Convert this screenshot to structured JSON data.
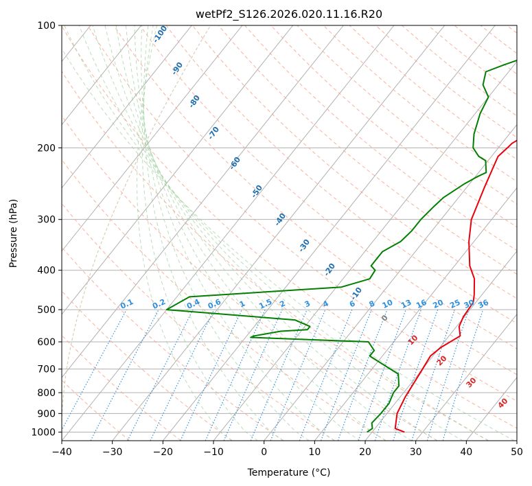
{
  "chart_data": {
    "type": "skew-t",
    "title": "wetPf2_S126.2026.020.11.16.R20",
    "xlabel": "Temperature (°C)",
    "ylabel": "Pressure (hPa)",
    "xlim": [
      -40,
      50
    ],
    "ylim": [
      1050,
      100
    ],
    "y_scale": "log",
    "x_ticks": [
      "−40",
      "−30",
      "−20",
      "−10",
      "0",
      "10",
      "20",
      "30",
      "40",
      "50"
    ],
    "y_ticks": [
      "100",
      "200",
      "300",
      "400",
      "500",
      "600",
      "700",
      "800",
      "900",
      "1000"
    ],
    "grid": true,
    "series": [
      {
        "role": "temperature",
        "color": "#e8000b",
        "points": [
          {
            "x": 26.4,
            "p": 1000
          },
          {
            "x": 24.0,
            "p": 980
          },
          {
            "x": 22.0,
            "p": 900
          },
          {
            "x": 21.0,
            "p": 820
          },
          {
            "x": 20.0,
            "p": 700
          },
          {
            "x": 19.5,
            "p": 650
          },
          {
            "x": 20.2,
            "p": 620
          },
          {
            "x": 22.2,
            "p": 580
          },
          {
            "x": 20.5,
            "p": 550
          },
          {
            "x": 19.8,
            "p": 520
          },
          {
            "x": 19.5,
            "p": 480
          },
          {
            "x": 18.5,
            "p": 460
          },
          {
            "x": 16.0,
            "p": 420
          },
          {
            "x": 13.0,
            "p": 390
          },
          {
            "x": 9.0,
            "p": 340
          },
          {
            "x": 6.0,
            "p": 300
          },
          {
            "x": 3.5,
            "p": 250
          },
          {
            "x": 1.3,
            "p": 210
          },
          {
            "x": 1.8,
            "p": 200
          },
          {
            "x": 2.0,
            "p": 195
          },
          {
            "x": 4.5,
            "p": 180
          },
          {
            "x": 6.5,
            "p": 170
          },
          {
            "x": 7.5,
            "p": 160
          },
          {
            "x": 8.5,
            "p": 140
          },
          {
            "x": 7.0,
            "p": 120
          },
          {
            "x": 6.0,
            "p": 110
          },
          {
            "x": 6.0,
            "p": 100
          }
        ]
      },
      {
        "role": "dewpoint",
        "color": "#007f00",
        "points": [
          {
            "x": 19.0,
            "p": 1000
          },
          {
            "x": 19.5,
            "p": 980
          },
          {
            "x": 18.5,
            "p": 950
          },
          {
            "x": 18.8,
            "p": 900
          },
          {
            "x": 18.8,
            "p": 850
          },
          {
            "x": 18.0,
            "p": 800
          },
          {
            "x": 18.0,
            "p": 770
          },
          {
            "x": 16.0,
            "p": 720
          },
          {
            "x": 10.0,
            "p": 670
          },
          {
            "x": 7.5,
            "p": 650
          },
          {
            "x": 7.5,
            "p": 630
          },
          {
            "x": 5.0,
            "p": 600
          },
          {
            "x": -19.0,
            "p": 585
          },
          {
            "x": -18.5,
            "p": 580
          },
          {
            "x": -14.0,
            "p": 565
          },
          {
            "x": -9.0,
            "p": 560
          },
          {
            "x": -9.0,
            "p": 550
          },
          {
            "x": -13.0,
            "p": 530
          },
          {
            "x": -40.0,
            "p": 500
          },
          {
            "x": -37.5,
            "p": 465
          },
          {
            "x": -9.0,
            "p": 440
          },
          {
            "x": -4.7,
            "p": 420
          },
          {
            "x": -5.0,
            "p": 400
          },
          {
            "x": -6.5,
            "p": 390
          },
          {
            "x": -6.5,
            "p": 360
          },
          {
            "x": -4.5,
            "p": 340
          },
          {
            "x": -4.0,
            "p": 320
          },
          {
            "x": -4.0,
            "p": 300
          },
          {
            "x": -3.5,
            "p": 280
          },
          {
            "x": -3.0,
            "p": 265
          },
          {
            "x": -1.0,
            "p": 245
          },
          {
            "x": 0.5,
            "p": 235
          },
          {
            "x": 1.5,
            "p": 230
          },
          {
            "x": -0.5,
            "p": 215
          },
          {
            "x": -2.5,
            "p": 210
          },
          {
            "x": -5.0,
            "p": 200
          },
          {
            "x": -7.0,
            "p": 185
          },
          {
            "x": -9.0,
            "p": 165
          },
          {
            "x": -10.0,
            "p": 150
          },
          {
            "x": -13.0,
            "p": 140
          },
          {
            "x": -14.5,
            "p": 130
          },
          {
            "x": -12.0,
            "p": 125
          },
          {
            "x": -9.0,
            "p": 120
          },
          {
            "x": -7.0,
            "p": 110
          },
          {
            "x": -5.5,
            "p": 100
          }
        ]
      }
    ],
    "mixing_ratio_labels": [
      "0.1",
      "0.2",
      "0.4",
      "0.6",
      "1",
      "1.5",
      "2",
      "3",
      "4",
      "6",
      "8",
      "10",
      "13",
      "16",
      "20",
      "25",
      "30",
      "36"
    ],
    "dry_adiabat_labels": [
      "-100",
      "-90",
      "-80",
      "-70",
      "-60",
      "-50",
      "-40",
      "-30",
      "-20",
      "-10"
    ],
    "moist_adiabat_labels": [
      "0",
      "10",
      "20",
      "30",
      "40"
    ]
  }
}
